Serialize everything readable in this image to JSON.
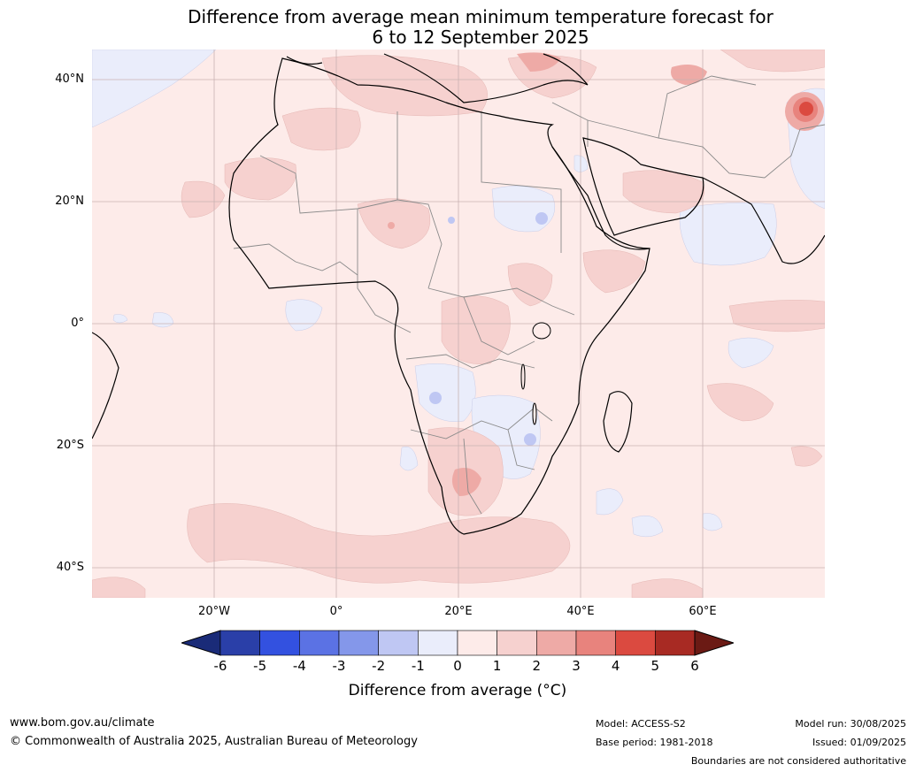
{
  "title_line1": "Difference from average mean minimum temperature forecast for",
  "title_line2": "6 to 12 September 2025",
  "lat_labels": [
    "40°N",
    "20°N",
    "0°",
    "20°S",
    "40°S"
  ],
  "lon_labels": [
    "20°W",
    "0°",
    "20°E",
    "40°E",
    "60°E"
  ],
  "colorbar": {
    "ticks": [
      "-6",
      "-5",
      "-4",
      "-3",
      "-2",
      "-1",
      "0",
      "1",
      "2",
      "3",
      "4",
      "5",
      "6"
    ],
    "colors": [
      "#2a3fa8",
      "#3351e0",
      "#5b72e4",
      "#8497ea",
      "#bfc7f3",
      "#eaedfb",
      "#fdebe9",
      "#f6d1cf",
      "#eeaaa6",
      "#e8837d",
      "#db4a40",
      "#a82a23"
    ],
    "under_color": "#1a2b78",
    "over_color": "#6b1a14",
    "label": "Difference from average (°C)"
  },
  "footer": {
    "website": "www.bom.gov.au/climate",
    "copyright": "© Commonwealth of Australia 2025, Australian Bureau of Meteorology",
    "model": "Model: ACCESS-S2",
    "base_period": "Base period: 1981-2018",
    "model_run": "Model run: 30/08/2025",
    "issued": "Issued: 01/09/2025",
    "disclaimer": "Boundaries are not considered authoritative"
  }
}
